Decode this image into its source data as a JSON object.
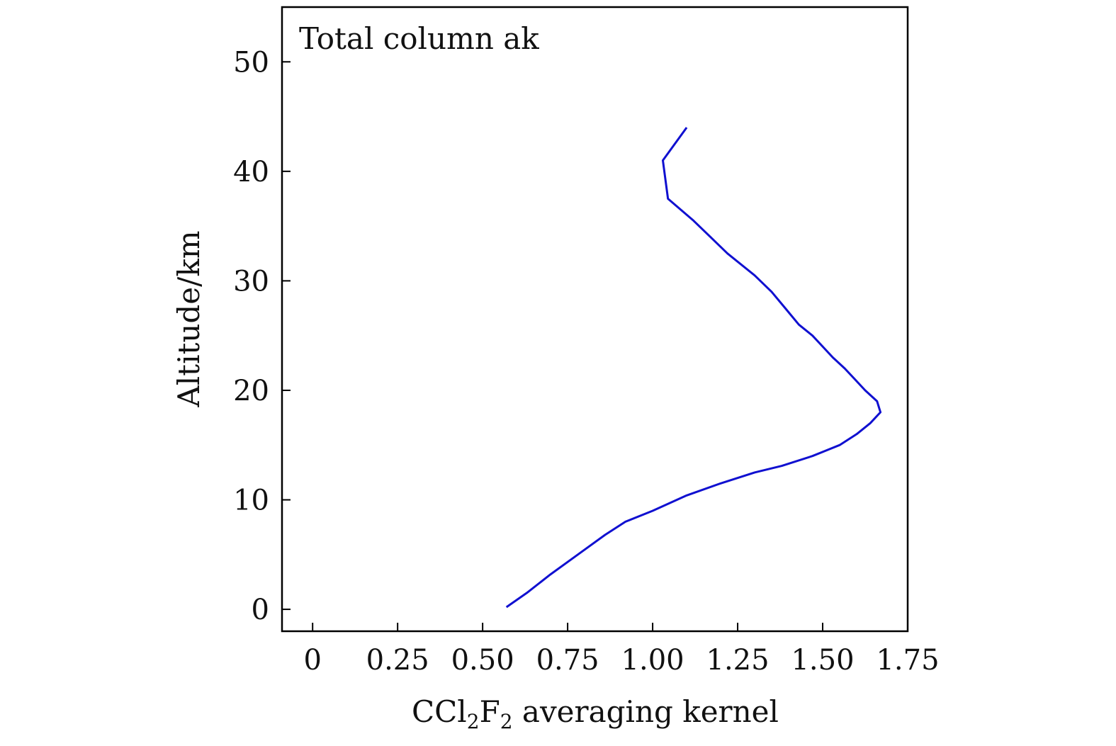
{
  "chart_data": {
    "type": "line",
    "annotation": "Total column ak",
    "xlabel": "CCl2F2 averaging kernel",
    "xlabel_parts": {
      "pre": "CCl",
      "sub1": "2",
      "mid": "F",
      "sub2": "2",
      "post": " averaging kernel"
    },
    "ylabel": "Altitude/km",
    "xlim": [
      -0.09,
      1.75
    ],
    "ylim": [
      -2,
      55
    ],
    "xticks": [
      0,
      0.25,
      0.5,
      0.75,
      1.0,
      1.25,
      1.5,
      1.75
    ],
    "xtick_labels": [
      "0",
      "0.25",
      "0.50",
      "0.75",
      "1.00",
      "1.25",
      "1.50",
      "1.75"
    ],
    "yticks": [
      0,
      10,
      20,
      30,
      40,
      50
    ],
    "ytick_labels": [
      "0",
      "10",
      "20",
      "30",
      "40",
      "50"
    ],
    "grid": false,
    "line_color": "#1010d0",
    "series": [
      {
        "x": [
          0.57,
          0.63,
          0.7,
          0.78,
          0.86,
          0.92,
          1.0,
          1.1,
          1.2,
          1.3,
          1.38,
          1.47,
          1.55,
          1.6,
          1.64,
          1.67,
          1.66,
          1.625,
          1.595,
          1.565,
          1.53,
          1.5,
          1.47,
          1.43,
          1.39,
          1.35,
          1.3,
          1.22,
          1.17,
          1.12,
          1.045,
          1.03,
          1.1
        ],
        "y": [
          0.2,
          1.5,
          3.2,
          5.0,
          6.8,
          8.0,
          9.0,
          10.4,
          11.5,
          12.5,
          13.1,
          14.0,
          15.0,
          16.0,
          17.0,
          18.0,
          19.0,
          20.0,
          21.0,
          22.0,
          23.0,
          24.0,
          25.0,
          26.0,
          27.5,
          29.0,
          30.5,
          32.5,
          34.0,
          35.5,
          37.5,
          41.0,
          44.0
        ]
      }
    ]
  }
}
